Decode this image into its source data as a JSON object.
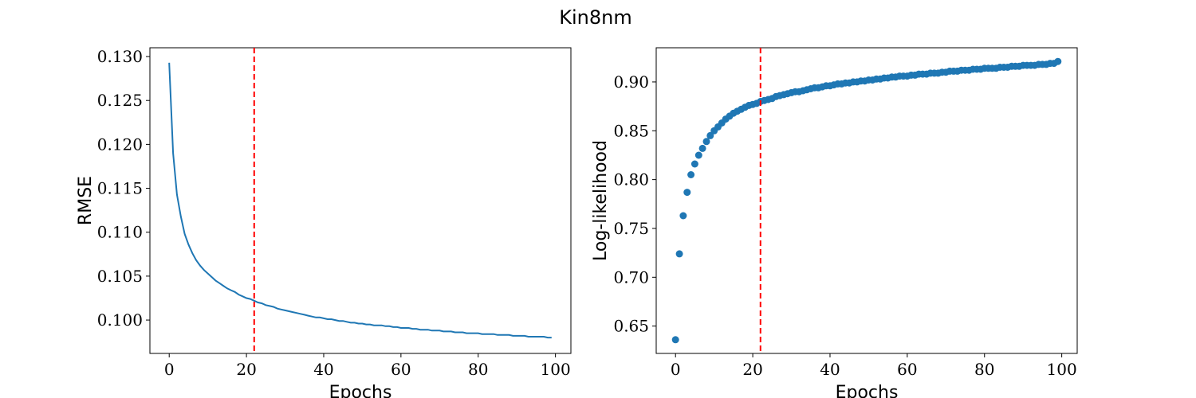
{
  "figure": {
    "title": "Kin8nm"
  },
  "chart_data": [
    {
      "type": "line",
      "xlabel": "Epochs",
      "ylabel": "RMSE",
      "xlim": [
        -5,
        104
      ],
      "ylim": [
        0.0962,
        0.131
      ],
      "xticks": [
        0,
        20,
        40,
        60,
        80,
        100
      ],
      "yticks": [
        0.1,
        0.105,
        0.11,
        0.115,
        0.12,
        0.125,
        0.13
      ],
      "ytick_labels": [
        "0.100",
        "0.105",
        "0.110",
        "0.115",
        "0.120",
        "0.125",
        "0.130"
      ],
      "vline": 22,
      "line_color": "#1f77b4",
      "vline_color": "#ff0000",
      "series": [
        {
          "x": [
            0,
            1,
            2,
            3,
            4,
            5,
            6,
            7,
            8,
            9,
            10,
            11,
            12,
            13,
            14,
            15,
            16,
            17,
            18,
            19,
            20,
            21,
            22,
            23,
            24,
            25,
            26,
            27,
            28,
            29,
            30,
            31,
            32,
            33,
            34,
            35,
            36,
            37,
            38,
            39,
            40,
            41,
            42,
            43,
            44,
            45,
            46,
            47,
            48,
            49,
            50,
            51,
            52,
            53,
            54,
            55,
            56,
            57,
            58,
            59,
            60,
            61,
            62,
            63,
            64,
            65,
            66,
            67,
            68,
            69,
            70,
            71,
            72,
            73,
            74,
            75,
            76,
            77,
            78,
            79,
            80,
            81,
            82,
            83,
            84,
            85,
            86,
            87,
            88,
            89,
            90,
            91,
            92,
            93,
            94,
            95,
            96,
            97,
            98,
            99
          ],
          "values": [
            0.1293,
            0.119,
            0.1143,
            0.1118,
            0.1098,
            0.1086,
            0.1076,
            0.1068,
            0.1062,
            0.1057,
            0.1053,
            0.1049,
            0.1045,
            0.1042,
            0.1039,
            0.1036,
            0.1034,
            0.1032,
            0.1029,
            0.1027,
            0.1025,
            0.1024,
            0.1022,
            0.102,
            0.1019,
            0.1017,
            0.1016,
            0.1015,
            0.1013,
            0.1012,
            0.1011,
            0.101,
            0.1009,
            0.1008,
            0.1007,
            0.1006,
            0.1005,
            0.1004,
            0.1003,
            0.1003,
            0.1002,
            0.1001,
            0.1001,
            0.1,
            0.0999,
            0.0999,
            0.0998,
            0.0997,
            0.0997,
            0.0996,
            0.0996,
            0.0995,
            0.0995,
            0.0994,
            0.0994,
            0.0994,
            0.0993,
            0.0993,
            0.0992,
            0.0992,
            0.0991,
            0.0991,
            0.0991,
            0.099,
            0.099,
            0.0989,
            0.0989,
            0.0989,
            0.0988,
            0.0988,
            0.0988,
            0.0987,
            0.0987,
            0.0987,
            0.0986,
            0.0986,
            0.0986,
            0.0985,
            0.0985,
            0.0985,
            0.0985,
            0.0984,
            0.0984,
            0.0984,
            0.0984,
            0.0983,
            0.0983,
            0.0983,
            0.0983,
            0.0982,
            0.0982,
            0.0982,
            0.0982,
            0.0981,
            0.0981,
            0.0981,
            0.0981,
            0.0981,
            0.098,
            0.098
          ]
        }
      ]
    },
    {
      "type": "scatter",
      "xlabel": "Epochs",
      "ylabel": "Log-likelihood",
      "xlim": [
        -5,
        104
      ],
      "ylim": [
        0.622,
        0.935
      ],
      "xticks": [
        0,
        20,
        40,
        60,
        80,
        100
      ],
      "yticks": [
        0.65,
        0.7,
        0.75,
        0.8,
        0.85,
        0.9
      ],
      "ytick_labels": [
        "0.65",
        "0.70",
        "0.75",
        "0.80",
        "0.85",
        "0.90"
      ],
      "vline": 22,
      "marker_color": "#1f77b4",
      "vline_color": "#ff0000",
      "series": [
        {
          "x": [
            0,
            1,
            2,
            3,
            4,
            5,
            6,
            7,
            8,
            9,
            10,
            11,
            12,
            13,
            14,
            15,
            16,
            17,
            18,
            19,
            20,
            21,
            22,
            23,
            24,
            25,
            26,
            27,
            28,
            29,
            30,
            31,
            32,
            33,
            34,
            35,
            36,
            37,
            38,
            39,
            40,
            41,
            42,
            43,
            44,
            45,
            46,
            47,
            48,
            49,
            50,
            51,
            52,
            53,
            54,
            55,
            56,
            57,
            58,
            59,
            60,
            61,
            62,
            63,
            64,
            65,
            66,
            67,
            68,
            69,
            70,
            71,
            72,
            73,
            74,
            75,
            76,
            77,
            78,
            79,
            80,
            81,
            82,
            83,
            84,
            85,
            86,
            87,
            88,
            89,
            90,
            91,
            92,
            93,
            94,
            95,
            96,
            97,
            98,
            99
          ],
          "values": [
            0.636,
            0.724,
            0.763,
            0.787,
            0.805,
            0.816,
            0.825,
            0.832,
            0.839,
            0.845,
            0.85,
            0.854,
            0.858,
            0.862,
            0.865,
            0.868,
            0.87,
            0.872,
            0.874,
            0.876,
            0.877,
            0.878,
            0.88,
            0.881,
            0.882,
            0.883,
            0.885,
            0.886,
            0.887,
            0.888,
            0.889,
            0.89,
            0.89,
            0.891,
            0.892,
            0.893,
            0.894,
            0.894,
            0.895,
            0.896,
            0.896,
            0.897,
            0.898,
            0.898,
            0.899,
            0.899,
            0.9,
            0.9,
            0.901,
            0.901,
            0.902,
            0.902,
            0.903,
            0.903,
            0.904,
            0.904,
            0.905,
            0.905,
            0.906,
            0.906,
            0.906,
            0.907,
            0.907,
            0.908,
            0.908,
            0.908,
            0.909,
            0.909,
            0.909,
            0.91,
            0.91,
            0.911,
            0.911,
            0.911,
            0.912,
            0.912,
            0.912,
            0.913,
            0.913,
            0.913,
            0.914,
            0.914,
            0.914,
            0.914,
            0.915,
            0.915,
            0.915,
            0.916,
            0.916,
            0.916,
            0.917,
            0.917,
            0.917,
            0.917,
            0.918,
            0.918,
            0.918,
            0.919,
            0.919,
            0.921
          ]
        }
      ]
    }
  ]
}
